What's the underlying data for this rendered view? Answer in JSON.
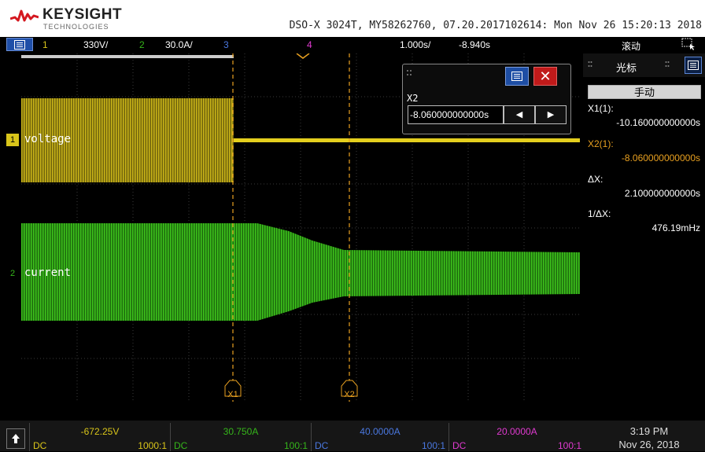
{
  "header": {
    "brand": "KEYSIGHT",
    "brand_sub": "TECHNOLOGIES",
    "device_info": "DSO-X 3024T, MY58262760, 07.20.2017102614: Mon Nov 26 15:20:13 2018"
  },
  "channel_bar": {
    "ch1_num": "1",
    "ch1_scale": "330V/",
    "ch2_num": "2",
    "ch2_scale": "30.0A/",
    "ch3_num": "3",
    "ch4_num": "4",
    "timebase": "1.000s/",
    "delay": "-8.940s",
    "mode": "滚动"
  },
  "traces": {
    "ch1_label": "voltage",
    "ch2_label": "current",
    "ch1_marker": "1",
    "ch2_marker": "2",
    "cursor1_label": "X1",
    "cursor2_label": "X2"
  },
  "cursor_dialog": {
    "label": "X2",
    "value": "-8.060000000000s",
    "left_arrow": "◀",
    "right_arrow": "▶",
    "close": "✕"
  },
  "side_panel": {
    "title": "光标",
    "mode_button": "手动",
    "x1_label": "X1(1):",
    "x1_value": "-10.160000000000s",
    "x2_label": "X2(1):",
    "x2_value": "-8.060000000000s",
    "dx_label": "ΔX:",
    "dx_value": "2.100000000000s",
    "inv_dx_label": "1/ΔX:",
    "inv_dx_value": "476.19mHz"
  },
  "footer": {
    "ch1": {
      "value": "-672.25V",
      "coupling": "DC",
      "ratio": "1000:1"
    },
    "ch2": {
      "value": "30.750A",
      "coupling": "DC",
      "ratio": "100:1"
    },
    "ch3": {
      "value": "40.0000A",
      "coupling": "DC",
      "ratio": "100:1"
    },
    "ch4": {
      "value": "20.0000A",
      "coupling": "DC",
      "ratio": "100:1"
    },
    "time": "3:19 PM",
    "date": "Nov 26, 2018"
  },
  "colors": {
    "ch1": "#d9c51a",
    "ch2": "#35b51a",
    "ch3": "#4a78e0",
    "ch4": "#e03ad0",
    "cursor": "#e8a020",
    "menu_blue": "#1f4fa8",
    "close_red": "#c01a1a"
  },
  "icons": {
    "menu": "menu-icon",
    "close": "close-icon",
    "up": "up-arrow-icon",
    "logo": "keysight-logo-icon"
  }
}
